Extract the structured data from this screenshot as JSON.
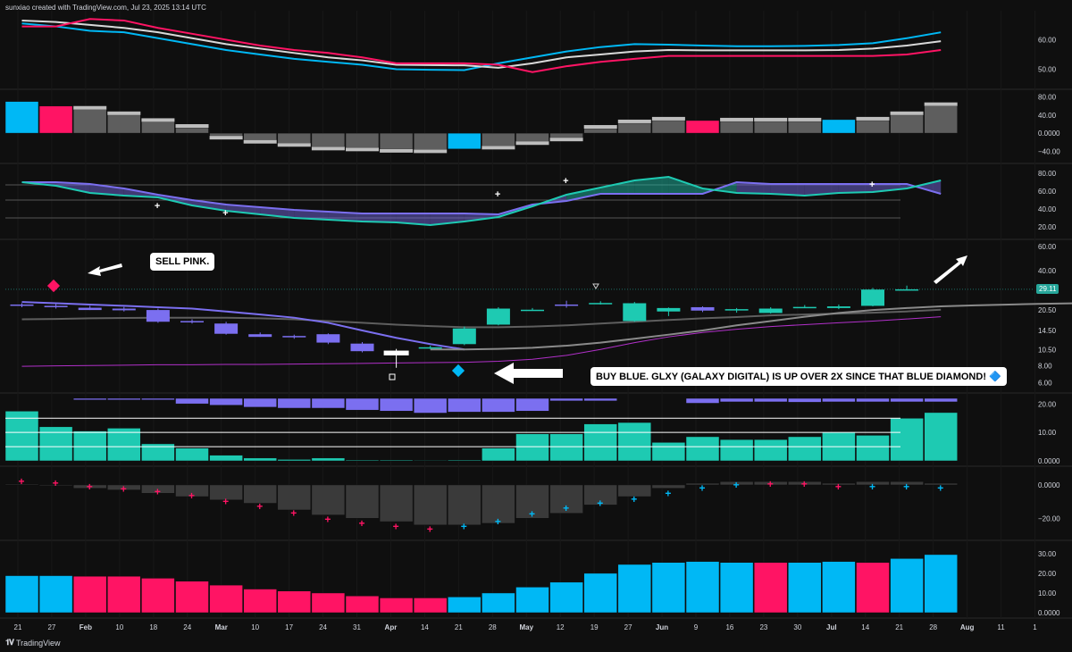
{
  "header": {
    "credit": "sunxiao created with TradingView.com, Jul 23, 2025 13:14 UTC"
  },
  "footer": {
    "brand": "TradingView",
    "logo_icon": "tradingview-logo-icon"
  },
  "annotations": {
    "sell": "SELL PINK.",
    "buy": "BUY BLUE. GLXY (GALAXY DIGITAL) IS UP OVER 2X SINCE THAT BLUE DIAMOND! 🔷"
  },
  "colors": {
    "bg": "#0f0f0f",
    "cyan": "#00b8f5",
    "pink": "#ff1464",
    "white": "#d9d9d9",
    "teal": "#1ecab2",
    "purple": "#7b6ff0",
    "gray": "#5e5e5e",
    "magenta": "#b130c9"
  },
  "chart_data": {
    "type": "multi-panel",
    "x_labels": [
      "21",
      "27",
      "Feb",
      "10",
      "18",
      "24",
      "Mar",
      "10",
      "17",
      "24",
      "31",
      "Apr",
      "14",
      "21",
      "28",
      "May",
      "12",
      "19",
      "27",
      "Jun",
      "9",
      "16",
      "23",
      "30",
      "Jul",
      "14",
      "21",
      "28",
      "Aug",
      "11",
      "1"
    ],
    "panels": [
      {
        "id": "p1",
        "type": "line",
        "y_ticks": [
          "60.00",
          "50.00"
        ],
        "ylim": [
          45,
          68
        ],
        "series": [
          {
            "color": "cyan",
            "values": [
              65.5,
              64.5,
              63,
              62.5,
              60.5,
              58.5,
              56.5,
              55,
              53.5,
              52.5,
              51.5,
              50,
              49.8,
              49.7,
              52,
              54,
              56,
              57.5,
              58.5,
              58.3,
              58,
              57.8,
              57.8,
              57.9,
              58.2,
              58.8,
              60.5,
              62.5
            ]
          },
          {
            "color": "white",
            "values": [
              66.5,
              66,
              65,
              64,
              62.5,
              60.5,
              58.5,
              57,
              55.5,
              54,
              53,
              51.5,
              51.4,
              51.3,
              50.5,
              52,
              54,
              55,
              56,
              56.5,
              56.4,
              56.4,
              56.4,
              56.4,
              56.5,
              57,
              58,
              59.5
            ]
          },
          {
            "color": "pink",
            "values": [
              64.5,
              64.5,
              67,
              66.5,
              64,
              62,
              60,
              58,
              56.5,
              55.5,
              54,
              52,
              52,
              52,
              51.5,
              49,
              51,
              52.5,
              53.5,
              54.5,
              54.5,
              54.5,
              54.5,
              54.5,
              54.5,
              54.5,
              55,
              56.5
            ]
          }
        ]
      },
      {
        "id": "p2",
        "type": "bar",
        "y_ticks": [
          "80.00",
          "40.00",
          "0.0000",
          "−40.00"
        ],
        "ylim": [
          -55,
          85
        ],
        "values": [
          70,
          60,
          52,
          40,
          25,
          12,
          -6,
          -15,
          -22,
          -30,
          -32,
          -35,
          -36,
          -35,
          -28,
          -18,
          -10,
          10,
          22,
          28,
          28,
          26,
          26,
          26,
          30,
          28,
          40,
          60
        ],
        "colors": [
          "cyan",
          "pink",
          "gray",
          "gray",
          "gray",
          "gray",
          "gray",
          "gray",
          "gray",
          "gray",
          "gray",
          "gray",
          "gray",
          "cyan",
          "gray",
          "gray",
          "gray",
          "gray",
          "gray",
          "gray",
          "pink",
          "gray",
          "gray",
          "gray",
          "cyan",
          "gray",
          "gray",
          "gray"
        ]
      },
      {
        "id": "p3",
        "type": "cloud",
        "y_ticks": [
          "80.00",
          "60.00",
          "40.00",
          "20.00"
        ],
        "ylim": [
          12,
          85
        ],
        "levels": [
          67,
          50,
          30
        ],
        "series": [
          {
            "color": "purple",
            "values": [
              70,
              70,
              68,
              63,
              56,
              50,
              45,
              42,
              39,
              37,
              35,
              35,
              35,
              35,
              34,
              45,
              49,
              57,
              57,
              57,
              57,
              70,
              68,
              68,
              68,
              68,
              68,
              57
            ]
          },
          {
            "color": "teal",
            "values": [
              70,
              66,
              58,
              55,
              53,
              44,
              38,
              34,
              30,
              28,
              26,
              25,
              22,
              26,
              31,
              43,
              56,
              64,
              72,
              76,
              63,
              58,
              57,
              55,
              58,
              59,
              63,
              72
            ]
          }
        ],
        "markers": [
          {
            "i": 4,
            "v": 44
          },
          {
            "i": 6,
            "v": 36
          },
          {
            "i": 14,
            "v": 57
          },
          {
            "i": 16,
            "v": 72
          },
          {
            "i": 25,
            "v": 68
          }
        ]
      },
      {
        "id": "p4",
        "type": "candlestick",
        "y_ticks": [
          "60.00",
          "40.00",
          "29.11",
          "20.50",
          "14.50",
          "10.50",
          "8.00",
          "6.00"
        ],
        "last_price": "29.11",
        "candles": [
          {
            "o": 22.3,
            "h": 23,
            "l": 21.5,
            "c": 22.5
          },
          {
            "o": 22.0,
            "h": 22.8,
            "l": 21.0,
            "c": 21.5
          },
          {
            "o": 21.3,
            "h": 22.0,
            "l": 20.5,
            "c": 20.5
          },
          {
            "o": 21.0,
            "h": 21.6,
            "l": 20.0,
            "c": 20.4
          },
          {
            "o": 20.5,
            "h": 21.0,
            "l": 16.5,
            "c": 16.8
          },
          {
            "o": 16.8,
            "h": 17.5,
            "l": 16.3,
            "c": 17.0
          },
          {
            "o": 16.3,
            "h": 16.8,
            "l": 13.5,
            "c": 13.7
          },
          {
            "o": 13.6,
            "h": 14.0,
            "l": 13.0,
            "c": 13.0
          },
          {
            "o": 13.2,
            "h": 13.5,
            "l": 12.6,
            "c": 12.9
          },
          {
            "o": 13.6,
            "h": 13.8,
            "l": 11.5,
            "c": 11.8
          },
          {
            "o": 11.6,
            "h": 11.9,
            "l": 10.0,
            "c": 10.2
          },
          {
            "o": 9.5,
            "h": 10.6,
            "l": 7.7,
            "c": 10.3
          },
          {
            "o": 10.9,
            "h": 11.2,
            "l": 10.6,
            "c": 10.9
          },
          {
            "o": 11.5,
            "h": 15.5,
            "l": 11.3,
            "c": 15.0
          },
          {
            "o": 16.0,
            "h": 21.5,
            "l": 15.8,
            "c": 21.0
          },
          {
            "o": 20.5,
            "h": 21.2,
            "l": 20.3,
            "c": 20.6
          },
          {
            "o": 22.5,
            "h": 24.0,
            "l": 21.3,
            "c": 22.0
          },
          {
            "o": 23.0,
            "h": 23.8,
            "l": 22.5,
            "c": 23.1
          },
          {
            "o": 17.0,
            "h": 23.5,
            "l": 16.8,
            "c": 23.0
          },
          {
            "o": 20.0,
            "h": 21.4,
            "l": 18.5,
            "c": 21.2
          },
          {
            "o": 21.5,
            "h": 21.8,
            "l": 19.8,
            "c": 20.3
          },
          {
            "o": 20.5,
            "h": 21.2,
            "l": 19.6,
            "c": 20.8
          },
          {
            "o": 19.5,
            "h": 21.5,
            "l": 19.3,
            "c": 21.0
          },
          {
            "o": 21.5,
            "h": 22.3,
            "l": 21.2,
            "c": 21.6
          },
          {
            "o": 21.2,
            "h": 22.5,
            "l": 20.8,
            "c": 21.8
          },
          {
            "o": 22.0,
            "h": 29.8,
            "l": 21.8,
            "c": 29.0
          },
          {
            "o": 29.0,
            "h": 31.0,
            "l": 28.5,
            "c": 29.11
          }
        ],
        "lines": [
          {
            "color": "gray",
            "values": [
              17.5,
              17.6,
              17.8,
              17.9,
              18.0,
              18.0,
              18.0,
              17.8,
              17.5,
              17.0,
              16.5,
              16.0,
              15.6,
              15.3,
              15.3,
              15.5,
              15.8,
              16.3,
              16.8,
              17.3,
              17.8,
              18.2,
              18.7,
              19.0,
              19.3,
              19.6,
              20.0,
              20.6
            ]
          },
          {
            "color": "white",
            "values": [
              null,
              null,
              null,
              null,
              null,
              null,
              null,
              null,
              null,
              null,
              null,
              null,
              null,
              null,
              null,
              null,
              null,
              null,
              null,
              null,
              null,
              null,
              null,
              null,
              null,
              null,
              null,
              null
            ]
          },
          {
            "color": "magenta",
            "values": [
              7.9,
              7.95,
              8.0,
              8.05,
              8.1,
              8.1,
              8.15,
              8.15,
              8.2,
              8.25,
              8.3,
              8.35,
              8.4,
              8.45,
              8.6,
              8.9,
              9.5,
              10.5,
              11.8,
              13.0,
              14.0,
              14.8,
              15.5,
              16.0,
              16.5,
              17.0,
              17.6,
              18.3
            ]
          }
        ],
        "ma_purple": [
          23.5,
          23.0,
          22.5,
          22.0,
          21.5,
          21.0,
          20.0,
          19.0,
          18.0,
          16.5,
          14.5,
          12.8,
          11.5,
          10.5
        ],
        "ma_gray": [
          10.5,
          10.5,
          10.6,
          10.8,
          11.2,
          11.8,
          12.6,
          13.5,
          14.5,
          15.8,
          17.0,
          18.3,
          19.5,
          20.5,
          21.2,
          21.8,
          22.2,
          22.5,
          22.8,
          23.0,
          23.2,
          23.5,
          24.2,
          25.0,
          26.0,
          27.2
        ]
      },
      {
        "id": "p5",
        "type": "bar-mirrored",
        "y_ticks": [
          "20.00",
          "10.00",
          "0.0000"
        ],
        "ylim": [
          0,
          22
        ],
        "levels": [
          15,
          10,
          5
        ],
        "teal": [
          17.5,
          12.0,
          10.5,
          11.5,
          6.0,
          4.5,
          2.0,
          1.0,
          0.5,
          1.0,
          0.3,
          0.3,
          0.2,
          0.3,
          4.5,
          9.5,
          9.5,
          13.0,
          13.5,
          6.5,
          8.5,
          7.5,
          7.5,
          8.5,
          10.0,
          9.0,
          15.0,
          17.0
        ],
        "purple": [
          0,
          0,
          0,
          0,
          0,
          0,
          0,
          0,
          0,
          0,
          0,
          0,
          0,
          0,
          0,
          0,
          0,
          0,
          0,
          0,
          0,
          0,
          0,
          0,
          0,
          0,
          0,
          0
        ],
        "purple_top": [
          0,
          0,
          0.8,
          0.8,
          0.8,
          2.8,
          3.5,
          4.5,
          5.0,
          5.0,
          6.0,
          6.5,
          7.5,
          7.0,
          7.0,
          6.5,
          1.3,
          1.3,
          0,
          0,
          2.5,
          1.8,
          1.8,
          2.0,
          1.8,
          1.8,
          1.8,
          1.8
        ]
      },
      {
        "id": "p6",
        "type": "histogram-markers",
        "y_ticks": [
          "0.0000",
          "−20.00"
        ],
        "ylim": [
          -30,
          8
        ],
        "values": [
          0.5,
          -0.5,
          -2,
          -3,
          -5,
          -7,
          -9,
          -11,
          -15,
          -18,
          -20,
          -22,
          -24,
          -24,
          -23,
          -20,
          -17,
          -12,
          -7,
          -2,
          1,
          2,
          2,
          2,
          1,
          2,
          2,
          1
        ],
        "marker_colors": [
          "pink",
          "pink",
          "pink",
          "pink",
          "pink",
          "pink",
          "pink",
          "pink",
          "pink",
          "pink",
          "pink",
          "pink",
          "pink",
          "cyan",
          "cyan",
          "cyan",
          "cyan",
          "cyan",
          "cyan",
          "cyan",
          "cyan",
          "cyan",
          "pink",
          "pink",
          "pink",
          "cyan",
          "cyan",
          "cyan"
        ],
        "marker_values": [
          2,
          1,
          -1,
          -2.5,
          -4,
          -6.5,
          -10,
          -13,
          -17,
          -20.5,
          -23,
          -25,
          -26.5,
          -25,
          -22,
          -17.5,
          -14,
          -11,
          -8.5,
          -5,
          -2,
          0,
          0.5,
          0.5,
          -1,
          -1,
          -1,
          -2
        ]
      },
      {
        "id": "p7",
        "type": "bar",
        "y_ticks": [
          "30.00",
          "20.00",
          "10.00",
          "0.0000"
        ],
        "ylim": [
          0,
          34
        ],
        "values": [
          18.8,
          18.8,
          18.5,
          18.5,
          17.5,
          16.0,
          14.0,
          12.0,
          11.0,
          10.0,
          8.5,
          7.5,
          7.5,
          8.0,
          10.0,
          13.0,
          15.5,
          20.0,
          24.5,
          25.5,
          26.0,
          25.5,
          25.5,
          25.5,
          26.0,
          25.5,
          27.5,
          29.5
        ],
        "colors": [
          "cyan",
          "cyan",
          "pink",
          "pink",
          "pink",
          "pink",
          "pink",
          "pink",
          "pink",
          "pink",
          "pink",
          "pink",
          "pink",
          "cyan",
          "cyan",
          "cyan",
          "cyan",
          "cyan",
          "cyan",
          "cyan",
          "cyan",
          "cyan",
          "pink",
          "cyan",
          "cyan",
          "pink",
          "cyan",
          "cyan"
        ]
      }
    ]
  }
}
